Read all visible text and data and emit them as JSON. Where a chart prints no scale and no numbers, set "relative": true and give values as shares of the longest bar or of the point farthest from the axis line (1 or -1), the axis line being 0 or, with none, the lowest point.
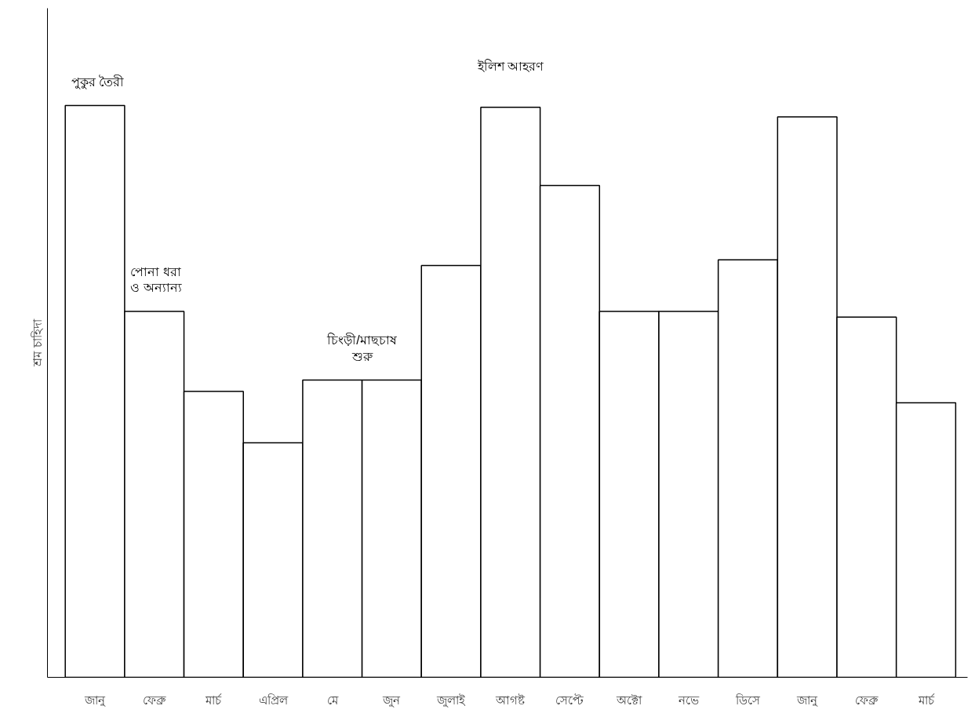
{
  "chart_data": {
    "type": "bar",
    "relative": true,
    "ylabel": "শ্রম চাহিদা",
    "color": "#ffffff",
    "categories": [
      "জানু",
      "ফেব্রু",
      "মার্চ",
      "এপ্রিল",
      "মে",
      "জুন",
      "জুলাই",
      "আগষ্ট",
      "সেপ্টে",
      "অক্টো",
      "নভে",
      "ডিসে",
      "জানু",
      "ফেব্রু",
      "মার্চ"
    ],
    "values": [
      1,
      0.64,
      0.5,
      0.41,
      0.52,
      0.52,
      0.72,
      0.997,
      0.86,
      0.64,
      0.64,
      0.73,
      0.98,
      0.63,
      0.48
    ],
    "annotations": [
      "পুকুর তৈরী",
      "পোনা ধরা\nও অন্যান্য",
      "চিংড়ী/মাছচাষ\nশুরু",
      "ইলিশ আহরণ"
    ],
    "grid": false
  }
}
